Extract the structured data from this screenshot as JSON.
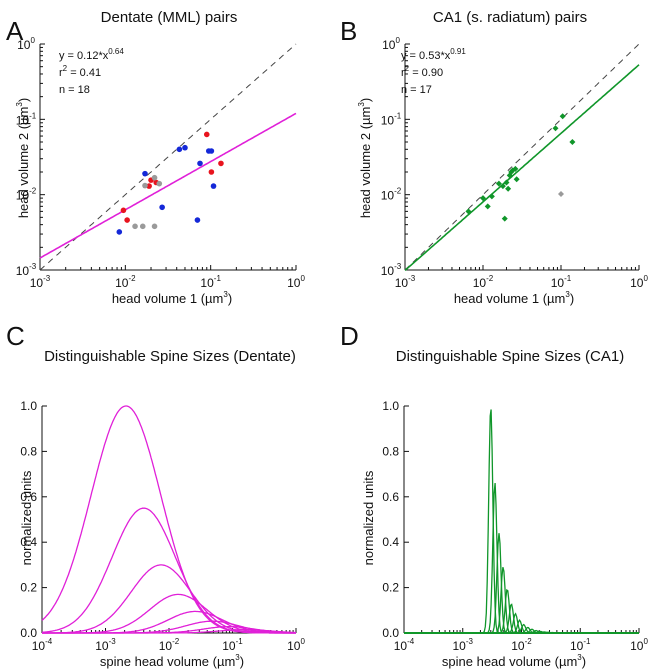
{
  "colors": {
    "magenta": "#e020d8",
    "green": "#10962a",
    "red": "#e8141e",
    "blue": "#1428d8",
    "gray": "#9a9a9a"
  },
  "panels": [
    {
      "letter": "A",
      "title": "Dentate (MML) pairs",
      "xlabel_main": "head volume 1 (µm",
      "ylabel_main": "head volume 2 (µm",
      "annotation": {
        "eq": "y = 0.12*x",
        "eq_exp": "0.64",
        "r2_label": "r",
        "r2_value": "= 0.41",
        "n": "n = 18"
      }
    },
    {
      "letter": "B",
      "title": "CA1 (s. radiatum) pairs",
      "xlabel_main": "head volume 1 (µm",
      "ylabel_main": "head volume 2 (µm",
      "annotation": {
        "eq": "y = 0.53*x",
        "eq_exp": "0.91",
        "r2_label": "r",
        "r2_value": "= 0.90",
        "n": "n = 17"
      }
    },
    {
      "letter": "C",
      "title": "Distinguishable Spine Sizes (Dentate)",
      "xlabel_main": "spine head volume (µm",
      "ylabel": "normalized units"
    },
    {
      "letter": "D",
      "title": "Distinguishable Spine Sizes (CA1)",
      "xlabel_main": "spine head volume (µm",
      "ylabel": "normalized units"
    }
  ],
  "chart_data": [
    {
      "type": "scatter",
      "panel": "A",
      "title": "Dentate (MML) pairs",
      "xlabel": "head volume 1 (µm3)",
      "ylabel": "head volume 2 (µm3)",
      "xscale": "log",
      "yscale": "log",
      "xlim": [
        0.001,
        1
      ],
      "ylim": [
        0.001,
        1
      ],
      "xticks": [
        "10-3",
        "10-2",
        "10-1",
        "100"
      ],
      "yticks": [
        "10-3",
        "10-2",
        "10-1",
        "100"
      ],
      "fit": {
        "a": 0.12,
        "b": 0.64,
        "color": "magenta"
      },
      "identity_line": true,
      "series": [
        {
          "color": "red",
          "points": [
            [
              0.0095,
              0.0062
            ],
            [
              0.0105,
              0.0046
            ],
            [
              0.019,
              0.013
            ],
            [
              0.02,
              0.0156
            ],
            [
              0.023,
              0.0145
            ],
            [
              0.09,
              0.063
            ],
            [
              0.102,
              0.02
            ],
            [
              0.132,
              0.026
            ]
          ]
        },
        {
          "color": "blue",
          "points": [
            [
              0.0085,
              0.0032
            ],
            [
              0.017,
              0.019
            ],
            [
              0.027,
              0.0068
            ],
            [
              0.043,
              0.04
            ],
            [
              0.05,
              0.042
            ],
            [
              0.07,
              0.0046
            ],
            [
              0.075,
              0.026
            ],
            [
              0.095,
              0.038
            ],
            [
              0.102,
              0.038
            ],
            [
              0.108,
              0.013
            ]
          ]
        },
        {
          "color": "gray",
          "points": [
            [
              0.017,
              0.0132
            ],
            [
              0.022,
              0.0168
            ],
            [
              0.022,
              0.0038
            ],
            [
              0.016,
              0.0038
            ],
            [
              0.013,
              0.0038
            ],
            [
              0.025,
              0.014
            ]
          ]
        }
      ]
    },
    {
      "type": "scatter",
      "panel": "B",
      "title": "CA1 (s. radiatum) pairs",
      "xlabel": "head volume 1 (µm3)",
      "ylabel": "head volume 2 (µm3)",
      "xscale": "log",
      "yscale": "log",
      "xlim": [
        0.001,
        1
      ],
      "ylim": [
        0.001,
        1
      ],
      "xticks": [
        "10-3",
        "10-2",
        "10-1",
        "100"
      ],
      "yticks": [
        "10-3",
        "10-2",
        "10-1",
        "100"
      ],
      "fit": {
        "a": 0.53,
        "b": 0.91,
        "color": "green"
      },
      "identity_line": true,
      "series": [
        {
          "color": "green",
          "points": [
            [
              0.0065,
              0.006
            ],
            [
              0.01,
              0.009
            ],
            [
              0.0115,
              0.007
            ],
            [
              0.013,
              0.0095
            ],
            [
              0.016,
              0.014
            ],
            [
              0.018,
              0.013
            ],
            [
              0.019,
              0.0048
            ],
            [
              0.02,
              0.0145
            ],
            [
              0.021,
              0.012
            ],
            [
              0.022,
              0.018
            ],
            [
              0.023,
              0.02
            ],
            [
              0.024,
              0.021
            ],
            [
              0.026,
              0.022
            ],
            [
              0.027,
              0.016
            ],
            [
              0.085,
              0.076
            ],
            [
              0.105,
              0.11
            ],
            [
              0.14,
              0.05
            ]
          ]
        },
        {
          "color": "gray",
          "points": [
            [
              0.1,
              0.0102
            ]
          ]
        }
      ]
    },
    {
      "type": "line",
      "panel": "C",
      "title": "Distinguishable Spine Sizes (Dentate)",
      "xlabel": "spine head volume (µm3)",
      "ylabel": "normalized units",
      "xscale": "log",
      "xlim": [
        0.0001,
        1
      ],
      "ylim": [
        0,
        1.0
      ],
      "xticks": [
        "10-4",
        "10-3",
        "10-2",
        "10-1",
        "100"
      ],
      "yticks": [
        "0.0",
        "0.2",
        "0.4",
        "0.6",
        "0.8",
        "1.0"
      ],
      "series_color": "magenta",
      "peaks": [
        {
          "x": 0.0021,
          "y": 1.0,
          "width": 0.55
        },
        {
          "x": 0.004,
          "y": 0.55,
          "width": 0.5
        },
        {
          "x": 0.0075,
          "y": 0.3,
          "width": 0.47
        },
        {
          "x": 0.014,
          "y": 0.17,
          "width": 0.45
        },
        {
          "x": 0.026,
          "y": 0.095,
          "width": 0.43
        },
        {
          "x": 0.048,
          "y": 0.052,
          "width": 0.42
        },
        {
          "x": 0.088,
          "y": 0.028,
          "width": 0.41
        },
        {
          "x": 0.16,
          "y": 0.015,
          "width": 0.4
        }
      ]
    },
    {
      "type": "line",
      "panel": "D",
      "title": "Distinguishable Spine Sizes (CA1)",
      "xlabel": "spine head volume (µm3)",
      "ylabel": "normalized units",
      "xscale": "log",
      "xlim": [
        0.0001,
        1
      ],
      "ylim": [
        0,
        1.0
      ],
      "xticks": [
        "10-4",
        "10-3",
        "10-2",
        "10-1",
        "100"
      ],
      "yticks": [
        "0.0",
        "0.2",
        "0.4",
        "0.6",
        "0.8",
        "1.0"
      ],
      "series_color": "green",
      "peaks_model": {
        "count": 26,
        "first_x": 0.003,
        "log_step": 0.07,
        "first_y": 1.0,
        "decay_per_decade": 2.55,
        "width": 0.035
      }
    }
  ]
}
